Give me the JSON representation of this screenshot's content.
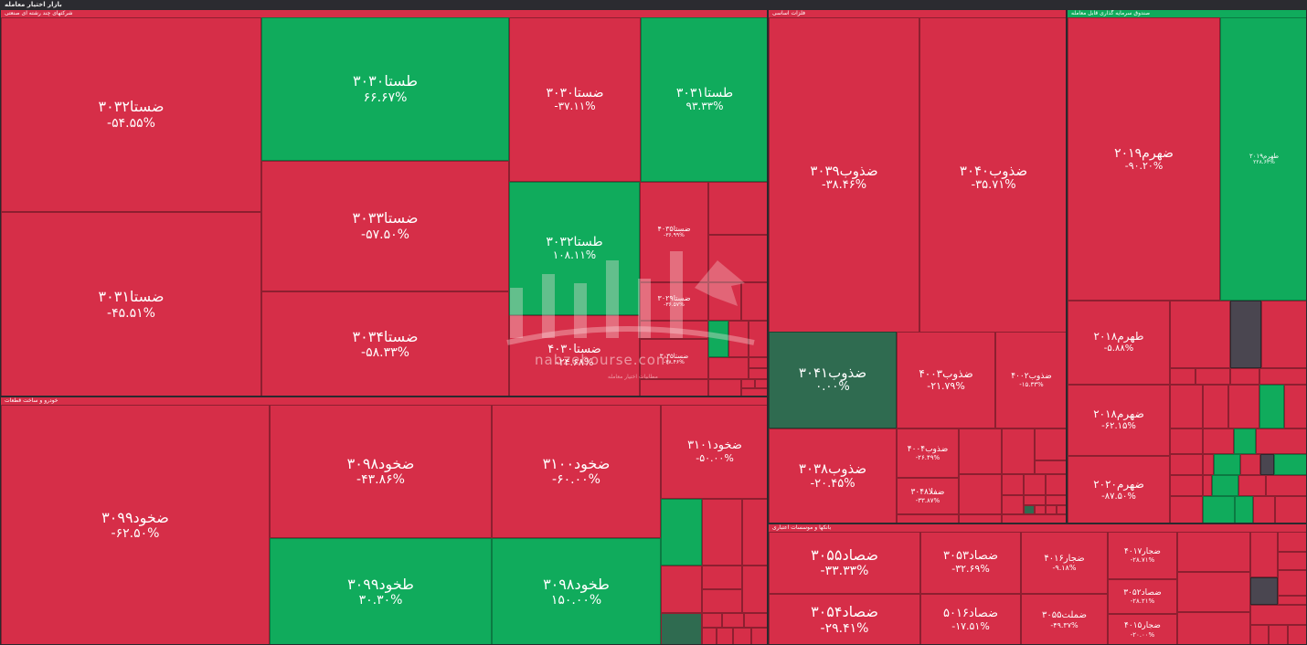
{
  "window": {
    "title": "بازار اختیار معامله"
  },
  "colors": {
    "down": "#d62e48",
    "up": "#10ab5c",
    "flat": "#2f6b50",
    "neutral": "#4a4650"
  },
  "watermark": {
    "text": "nabzebourse.com",
    "subtitle": "مطابیات اختیار معامله"
  },
  "chart_data": {
    "type": "treemap",
    "sectors": [
      {
        "name": "شرکتهای چند رشته ای صنعتی",
        "tiles": [
          {
            "symbol": "ضستا۳۰۳۲",
            "change": "-۵۴.۵۵%",
            "color": "down"
          },
          {
            "symbol": "ضستا۳۰۳۱",
            "change": "-۴۵.۵۱%",
            "color": "down"
          },
          {
            "symbol": "طستا۳۰۳۰",
            "change": "۶۶.۶۷%",
            "color": "up"
          },
          {
            "symbol": "ضستا۳۰۳۳",
            "change": "-۵۷.۵۰%",
            "color": "down"
          },
          {
            "symbol": "ضستا۳۰۳۴",
            "change": "-۵۸.۳۳%",
            "color": "down"
          },
          {
            "symbol": "ضستا۳۰۳۰",
            "change": "-۳۷.۱۱%",
            "color": "down"
          },
          {
            "symbol": "طستا۳۰۳۱",
            "change": "۹۳.۳۳%",
            "color": "up"
          },
          {
            "symbol": "طستا۳۰۳۲",
            "change": "۱۰۸.۱۱%",
            "color": "up"
          },
          {
            "symbol": "ضستا۴۰۳۰",
            "change": "-۲۴.۶۸%",
            "color": "down"
          },
          {
            "symbol": "ضستا۴۰۳۵",
            "change": "-۳۶.۹۹%",
            "color": "down"
          },
          {
            "symbol": "ضستا۳۰۲۹",
            "change": "-۳۶.۵۷%",
            "color": "down"
          },
          {
            "symbol": "ضستا۳۰۳۵",
            "change": "-۳۸.۴۶%",
            "color": "down"
          }
        ]
      },
      {
        "name": "فلزات اساسی",
        "tiles": [
          {
            "symbol": "ضذوب۳۰۳۹",
            "change": "-۳۸.۴۶%",
            "color": "down"
          },
          {
            "symbol": "ضذوب۳۰۴۰",
            "change": "-۳۵.۷۱%",
            "color": "down"
          },
          {
            "symbol": "ضذوب۳۰۴۱",
            "change": "۰.۰۰%",
            "color": "flat"
          },
          {
            "symbol": "ضذوب۳۰۳۸",
            "change": "-۲۰.۴۵%",
            "color": "down"
          },
          {
            "symbol": "ضذوب۴۰۰۳",
            "change": "-۲۱.۷۹%",
            "color": "down"
          },
          {
            "symbol": "ضذوب۴۰۰۲",
            "change": "-۱۵.۳۳%",
            "color": "down"
          },
          {
            "symbol": "ضذوب۴۰۰۴",
            "change": "-۲۶.۴۹%",
            "color": "down"
          },
          {
            "symbol": "ضفلا۳۰۴۸",
            "change": "-۳۳.۸۷%",
            "color": "down"
          }
        ]
      },
      {
        "name": "صندوق سرمایه گذاری قابل معامله",
        "tiles": [
          {
            "symbol": "ضهرم۲۰۱۹",
            "change": "-۹۰.۲۰%",
            "color": "down"
          },
          {
            "symbol": "طهرم۲۰۱۹",
            "change": "۲۲۸.۶۳%",
            "color": "up"
          },
          {
            "symbol": "طهرم۲۰۱۸",
            "change": "-۵.۸۸%",
            "color": "down"
          },
          {
            "symbol": "ضهرم۲۰۱۸",
            "change": "-۶۲.۱۵%",
            "color": "down"
          },
          {
            "symbol": "ضهرم۲۰۲۰",
            "change": "-۸۷.۵۰%",
            "color": "down"
          }
        ]
      },
      {
        "name": "خودرو و ساخت قطعات",
        "tiles": [
          {
            "symbol": "ضخود۳۰۹۹",
            "change": "-۶۲.۵۰%",
            "color": "down"
          },
          {
            "symbol": "ضخود۳۰۹۸",
            "change": "-۴۳.۸۶%",
            "color": "down"
          },
          {
            "symbol": "ضخود۳۱۰۰",
            "change": "-۶۰.۰۰%",
            "color": "down"
          },
          {
            "symbol": "ضخود۳۱۰۱",
            "change": "-۵۰.۰۰%",
            "color": "down"
          },
          {
            "symbol": "طخود۳۰۹۹",
            "change": "۳۰.۳۰%",
            "color": "up"
          },
          {
            "symbol": "طخود۳۰۹۸",
            "change": "۱۵۰.۰۰%",
            "color": "up"
          }
        ]
      },
      {
        "name": "بانکها و موسسات اعتباری",
        "tiles": [
          {
            "symbol": "ضصاد۳۰۵۵",
            "change": "-۳۳.۳۳%",
            "color": "down"
          },
          {
            "symbol": "ضصاد۳۰۵۳",
            "change": "-۳۲.۶۹%",
            "color": "down"
          },
          {
            "symbol": "ضجار۴۰۱۶",
            "change": "-۹.۱۸%",
            "color": "down"
          },
          {
            "symbol": "ضجار۴۰۱۷",
            "change": "-۲۸.۷۱%",
            "color": "down"
          },
          {
            "symbol": "ضصاد۳۰۵۴",
            "change": "-۲۹.۴۱%",
            "color": "down"
          },
          {
            "symbol": "ضصاد۵۰۱۶",
            "change": "-۱۷.۵۱%",
            "color": "down"
          },
          {
            "symbol": "ضملت۳۰۵۵",
            "change": "-۴۹.۳۷%",
            "color": "down"
          },
          {
            "symbol": "ضصاد۳۰۵۲",
            "change": "-۲۸.۲۱%",
            "color": "down"
          },
          {
            "symbol": "ضجار۴۰۱۵",
            "change": "-۲۰.۰۰%",
            "color": "down"
          }
        ]
      }
    ]
  }
}
